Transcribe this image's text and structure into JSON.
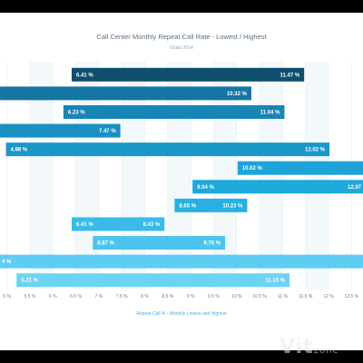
{
  "chart_data": {
    "type": "bar",
    "title": "Call Center Monthly Repeat Call Rate - Lowest / Highest",
    "subtitle": "Ocala 2014",
    "xlabel": "Repeat Call % - Monthly Lowest and Highest",
    "x_ticks": [
      "5 %",
      "5.5 %",
      "6 %",
      "6.5 %",
      "7 %",
      "7.5 %",
      "8 %",
      "8.5 %",
      "9 %",
      "9.5 %",
      "10 %",
      "10.5 %",
      "11 %",
      "11.5 %",
      "12 %",
      "12.5 %"
    ],
    "xlim": [
      4.85,
      12.75
    ],
    "grid": true,
    "series": [
      {
        "low": 6.41,
        "high": 11.47,
        "low_label": "6.41 %",
        "high_label": "11.47 %",
        "color": "#0f4f6e"
      },
      {
        "low": 4.0,
        "high": 10.32,
        "low_label": "",
        "high_label": "10.32 %",
        "color": "#1576a3"
      },
      {
        "low": 6.23,
        "high": 11.04,
        "low_label": "6.23 %",
        "high_label": "11.04 %",
        "color": "#1785b5"
      },
      {
        "low": 4.0,
        "high": 7.47,
        "low_label": "",
        "high_label": "7.47 %",
        "color": "#1a90c0"
      },
      {
        "low": 4.98,
        "high": 12.02,
        "low_label": "4.98 %",
        "high_label": "12.02 %",
        "color": "#1c97c9"
      },
      {
        "low": 10.02,
        "high": 13.0,
        "low_label": "10.02 %",
        "high_label": "",
        "color": "#1fa3d6"
      },
      {
        "low": 9.04,
        "high": 12.97,
        "low_label": "9.04 %",
        "high_label": "12.97",
        "color": "#1fa8dc"
      },
      {
        "low": 8.65,
        "high": 10.23,
        "low_label": "8.65 %",
        "high_label": "10.23 %",
        "color": "#28b0e2"
      },
      {
        "low": 6.41,
        "high": 8.43,
        "low_label": "6.41 %",
        "high_label": "8.43 %",
        "color": "#38bbe9"
      },
      {
        "low": 6.87,
        "high": 9.75,
        "low_label": "6.87 %",
        "high_label": "9.75 %",
        "color": "#4cc4ee"
      },
      {
        "low": 4.0,
        "high": 13.0,
        "low_label": "4 %",
        "high_label": "",
        "color": "#5ecdf2"
      },
      {
        "low": 5.21,
        "high": 11.15,
        "low_label": "5.21 %",
        "high_label": "11.15 %",
        "color": "#6dd3f4"
      }
    ]
  },
  "watermark": {
    "main": "Vit",
    "suffix": "zone"
  }
}
